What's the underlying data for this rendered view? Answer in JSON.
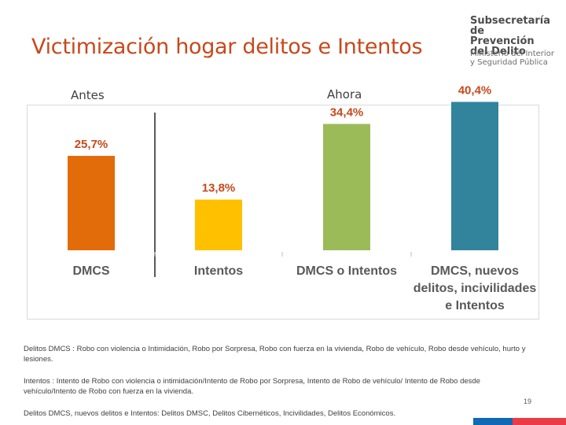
{
  "title": "Victimización hogar delitos e Intentos",
  "logo": {
    "name_lines": [
      "Subsecretaría de",
      "Prevención",
      "del Delito"
    ],
    "ministry_lines": [
      "Ministerio del Interior",
      "y Seguridad Pública"
    ]
  },
  "labels": {
    "before": "Antes",
    "after": "Ahora"
  },
  "chart_data": {
    "type": "bar",
    "categories": [
      "DMCS",
      "Intentos",
      "DMCS o Intentos",
      "DMCS, nuevos delitos, incivilidades e Intentos"
    ],
    "values": [
      25.7,
      13.8,
      34.4,
      40.4
    ],
    "data_labels": [
      "25,7%",
      "13,8%",
      "34,4%",
      "40,4%"
    ],
    "category_lines": [
      [
        "DMCS"
      ],
      [
        "Intentos"
      ],
      [
        "DMCS o Intentos"
      ],
      [
        "DMCS, nuevos",
        "delitos, incivilidades",
        "e Intentos"
      ]
    ],
    "colors": [
      "#e26b0a",
      "#ffc000",
      "#9bbb59",
      "#31849b"
    ],
    "label_color": "#c8481b",
    "groups": [
      "Antes",
      "Ahora"
    ],
    "ylim": [
      0,
      45
    ],
    "grid": false
  },
  "notes": [
    {
      "label": "Delitos DMCS :",
      "text": " Robo con violencia o Intimidación, Robo por Sorpresa, Robo con fuerza en la vivienda, Robo de vehículo, Robo desde vehículo, hurto y lesiones."
    },
    {
      "label": "Intentos :",
      "text": " Intento de Robo con violencia o intimidación/Intento de Robo por Sorpresa, Intento de Robo de vehículo/ Intento de Robo desde vehículo/Intento de Robo con fuerza en la vivienda."
    },
    {
      "label": "Delitos DMCS, nuevos delitos e Intentos:",
      "text": " Delitos DMSC, Delitos Cibernéticos, Incivilidades, Delitos Económicos."
    }
  ],
  "page_number": "19",
  "colors": {
    "title": "#c8481b",
    "logo_blue": "#0f69b4",
    "logo_red": "#eb3c46"
  }
}
